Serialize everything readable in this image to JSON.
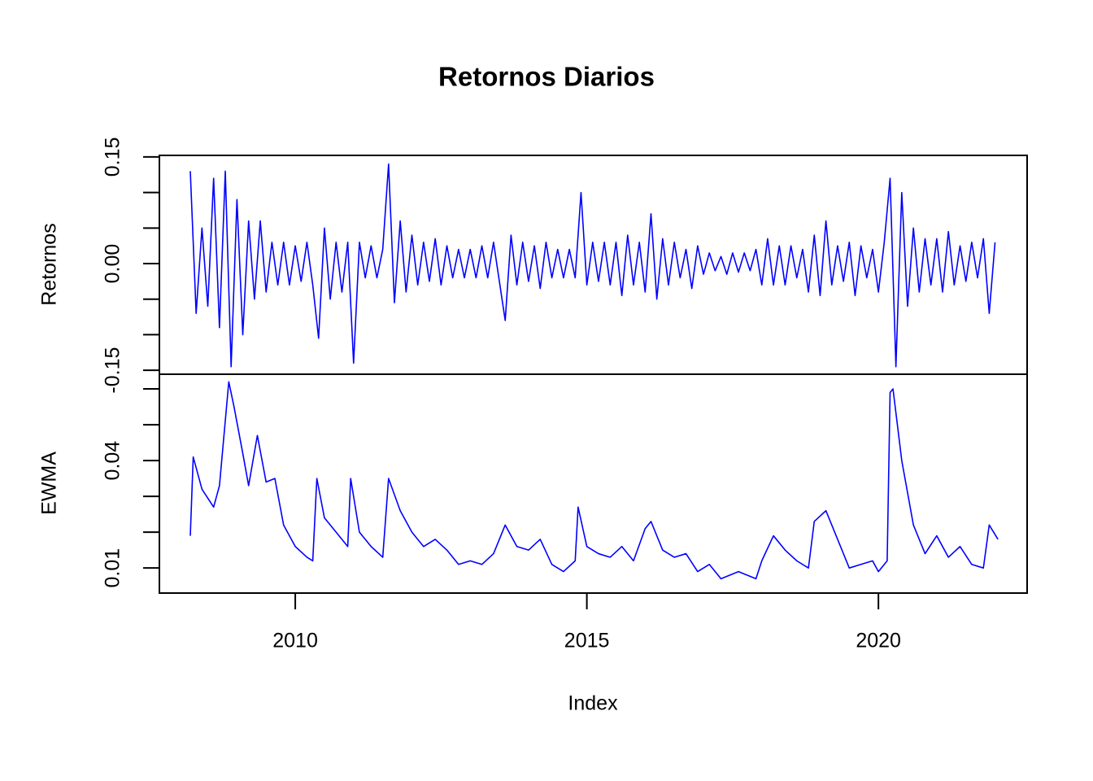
{
  "chart_data": [
    {
      "type": "line",
      "title": "Retornos Diarios",
      "ylabel": "Retornos",
      "color": "#0000ff",
      "xlim": [
        2007.67,
        2022.55
      ],
      "ylim": [
        -0.1556,
        0.1522
      ],
      "yticks": [
        {
          "value": -0.15,
          "label": "-0.15"
        },
        -0.1,
        -0.05,
        {
          "value": 0,
          "label": "0.00"
        },
        0.05,
        0.1,
        {
          "value": 0.15,
          "label": "0.15"
        }
      ],
      "x": [
        2008.2,
        2008.3,
        2008.4,
        2008.5,
        2008.6,
        2008.7,
        2008.8,
        2008.9,
        2009.0,
        2009.1,
        2009.2,
        2009.3,
        2009.4,
        2009.5,
        2009.6,
        2009.7,
        2009.8,
        2009.9,
        2010.0,
        2010.1,
        2010.2,
        2010.3,
        2010.4,
        2010.5,
        2010.6,
        2010.7,
        2010.8,
        2010.9,
        2011.0,
        2011.1,
        2011.2,
        2011.3,
        2011.4,
        2011.5,
        2011.6,
        2011.7,
        2011.8,
        2011.9,
        2012.0,
        2012.1,
        2012.2,
        2012.3,
        2012.4,
        2012.5,
        2012.6,
        2012.7,
        2012.8,
        2012.9,
        2013.0,
        2013.1,
        2013.2,
        2013.3,
        2013.4,
        2013.5,
        2013.6,
        2013.7,
        2013.8,
        2013.9,
        2014.0,
        2014.1,
        2014.2,
        2014.3,
        2014.4,
        2014.5,
        2014.6,
        2014.7,
        2014.8,
        2014.9,
        2015.0,
        2015.1,
        2015.2,
        2015.3,
        2015.4,
        2015.5,
        2015.6,
        2015.7,
        2015.8,
        2015.9,
        2016.0,
        2016.1,
        2016.2,
        2016.3,
        2016.4,
        2016.5,
        2016.6,
        2016.7,
        2016.8,
        2016.9,
        2017.0,
        2017.1,
        2017.2,
        2017.3,
        2017.4,
        2017.5,
        2017.6,
        2017.7,
        2017.8,
        2017.9,
        2018.0,
        2018.1,
        2018.2,
        2018.3,
        2018.4,
        2018.5,
        2018.6,
        2018.7,
        2018.8,
        2018.9,
        2019.0,
        2019.1,
        2019.2,
        2019.3,
        2019.4,
        2019.5,
        2019.6,
        2019.7,
        2019.8,
        2019.9,
        2020.0,
        2020.1,
        2020.2,
        2020.3,
        2020.4,
        2020.5,
        2020.6,
        2020.7,
        2020.8,
        2020.9,
        2021.0,
        2021.1,
        2021.2,
        2021.3,
        2021.4,
        2021.5,
        2021.6,
        2021.7,
        2021.8,
        2021.9,
        2022.0
      ],
      "values": [
        0.13,
        -0.07,
        0.05,
        -0.06,
        0.12,
        -0.09,
        0.13,
        -0.145,
        0.09,
        -0.1,
        0.06,
        -0.05,
        0.06,
        -0.04,
        0.03,
        -0.03,
        0.03,
        -0.03,
        0.025,
        -0.025,
        0.03,
        -0.03,
        -0.105,
        0.05,
        -0.05,
        0.03,
        -0.04,
        0.03,
        -0.14,
        0.03,
        -0.02,
        0.025,
        -0.02,
        0.02,
        0.14,
        -0.055,
        0.06,
        -0.04,
        0.04,
        -0.03,
        0.03,
        -0.025,
        0.035,
        -0.03,
        0.025,
        -0.02,
        0.02,
        -0.02,
        0.02,
        -0.02,
        0.025,
        -0.02,
        0.03,
        -0.025,
        -0.08,
        0.04,
        -0.03,
        0.03,
        -0.025,
        0.025,
        -0.035,
        0.03,
        -0.02,
        0.02,
        -0.02,
        0.02,
        -0.02,
        0.1,
        -0.03,
        0.03,
        -0.025,
        0.03,
        -0.03,
        0.03,
        -0.045,
        0.04,
        -0.03,
        0.03,
        -0.04,
        0.07,
        -0.05,
        0.035,
        -0.03,
        0.03,
        -0.02,
        0.02,
        -0.035,
        0.025,
        -0.015,
        0.015,
        -0.01,
        0.01,
        -0.015,
        0.015,
        -0.012,
        0.015,
        -0.01,
        0.02,
        -0.03,
        0.035,
        -0.03,
        0.025,
        -0.03,
        0.025,
        -0.02,
        0.02,
        -0.04,
        0.04,
        -0.045,
        0.06,
        -0.03,
        0.025,
        -0.025,
        0.03,
        -0.045,
        0.025,
        -0.02,
        0.02,
        -0.04,
        0.03,
        0.12,
        -0.145,
        0.1,
        -0.06,
        0.05,
        -0.04,
        0.035,
        -0.03,
        0.035,
        -0.04,
        0.045,
        -0.03,
        0.025,
        -0.025,
        0.03,
        -0.02,
        0.035,
        -0.07,
        0.03
      ]
    },
    {
      "type": "line",
      "ylabel": "EWMA",
      "xlabel": "Index",
      "color": "#0000ff",
      "xlim": [
        2007.67,
        2022.55
      ],
      "ylim": [
        0.003,
        0.0641
      ],
      "yticks": [
        {
          "value": 0.01,
          "label": "0.01"
        },
        0.02,
        0.03,
        {
          "value": 0.04,
          "label": "0.04"
        },
        0.05,
        0.06
      ],
      "xticks": [
        2010,
        2015,
        2020
      ],
      "x": [
        2008.2,
        2008.25,
        2008.4,
        2008.6,
        2008.7,
        2008.86,
        2008.95,
        2009.1,
        2009.2,
        2009.35,
        2009.5,
        2009.65,
        2009.8,
        2010.0,
        2010.2,
        2010.3,
        2010.37,
        2010.5,
        2010.7,
        2010.9,
        2010.95,
        2011.1,
        2011.3,
        2011.5,
        2011.6,
        2011.8,
        2012.0,
        2012.2,
        2012.4,
        2012.6,
        2012.8,
        2013.0,
        2013.2,
        2013.4,
        2013.6,
        2013.8,
        2014.0,
        2014.2,
        2014.4,
        2014.6,
        2014.8,
        2014.85,
        2015.0,
        2015.2,
        2015.4,
        2015.6,
        2015.8,
        2016.0,
        2016.1,
        2016.3,
        2016.5,
        2016.7,
        2016.9,
        2017.1,
        2017.3,
        2017.6,
        2017.9,
        2018.0,
        2018.2,
        2018.4,
        2018.6,
        2018.8,
        2018.9,
        2019.1,
        2019.3,
        2019.5,
        2019.7,
        2019.9,
        2020.0,
        2020.15,
        2020.2,
        2020.25,
        2020.4,
        2020.6,
        2020.8,
        2021.0,
        2021.2,
        2021.4,
        2021.6,
        2021.8,
        2021.9,
        2022.05
      ],
      "values": [
        0.019,
        0.041,
        0.032,
        0.027,
        0.033,
        0.062,
        0.055,
        0.042,
        0.033,
        0.047,
        0.034,
        0.035,
        0.022,
        0.016,
        0.013,
        0.012,
        0.035,
        0.024,
        0.02,
        0.016,
        0.035,
        0.02,
        0.016,
        0.013,
        0.035,
        0.026,
        0.02,
        0.016,
        0.018,
        0.015,
        0.011,
        0.012,
        0.011,
        0.014,
        0.022,
        0.016,
        0.015,
        0.018,
        0.011,
        0.009,
        0.012,
        0.027,
        0.016,
        0.014,
        0.013,
        0.016,
        0.012,
        0.021,
        0.023,
        0.015,
        0.013,
        0.014,
        0.009,
        0.011,
        0.007,
        0.009,
        0.007,
        0.012,
        0.019,
        0.015,
        0.012,
        0.01,
        0.023,
        0.026,
        0.018,
        0.01,
        0.011,
        0.012,
        0.009,
        0.012,
        0.059,
        0.06,
        0.04,
        0.022,
        0.014,
        0.019,
        0.013,
        0.016,
        0.011,
        0.01,
        0.022,
        0.018
      ]
    }
  ]
}
